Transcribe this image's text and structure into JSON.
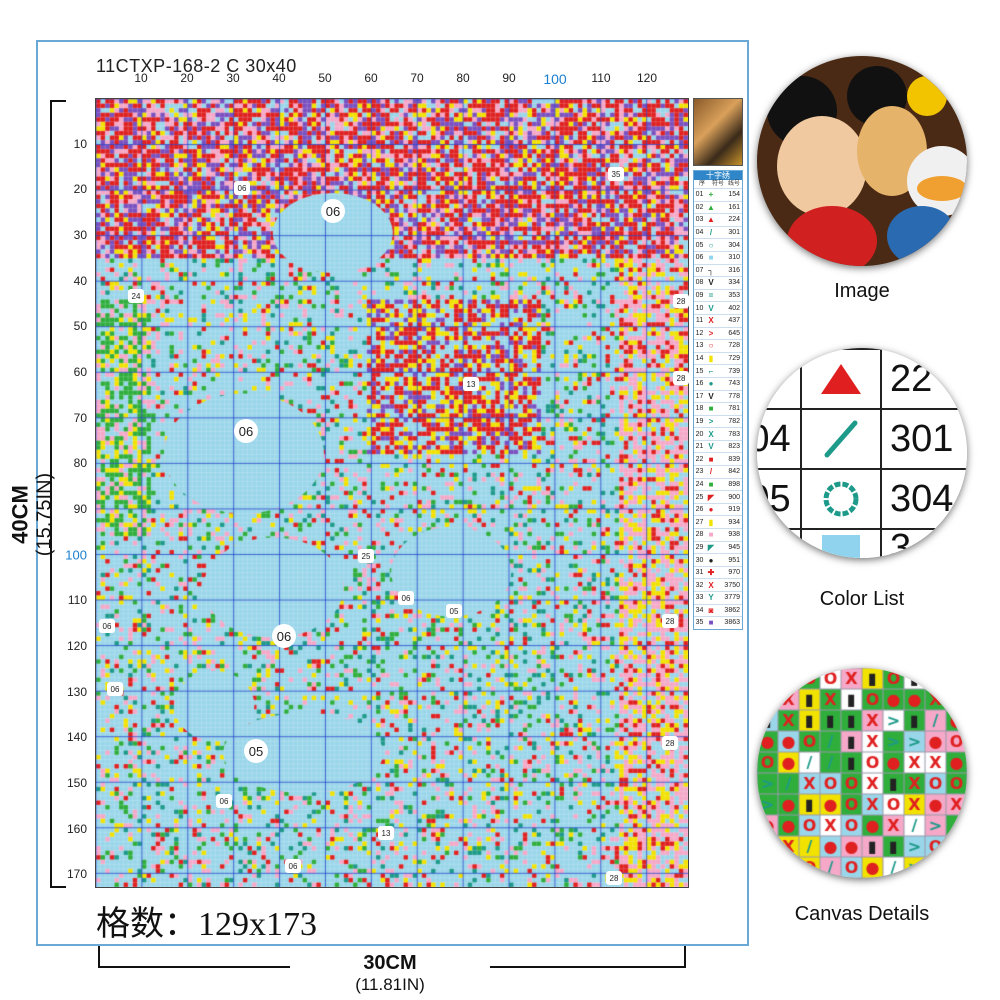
{
  "pattern": {
    "code_title": "11CTXP-168-2 C 30x40",
    "grid_count": "格数：129x173",
    "width_cm": "30CM",
    "width_in": "(11.81IN)",
    "height_cm": "40CM",
    "height_in": "(15.75IN)",
    "top_ticks": [
      "10",
      "20",
      "30",
      "40",
      "50",
      "60",
      "70",
      "80",
      "90",
      "100",
      "110",
      "120"
    ],
    "left_ticks": [
      "10",
      "20",
      "30",
      "40",
      "50",
      "60",
      "70",
      "80",
      "90",
      "100",
      "110",
      "120",
      "130",
      "140",
      "150",
      "160",
      "170"
    ],
    "region_labels": {
      "r1": "06",
      "r2": "06",
      "r3": "06",
      "r4": "05",
      "r5": "06"
    },
    "small_labels": {
      "s1": "06",
      "s2": "28",
      "s3": "28",
      "s4": "13",
      "s5": "06",
      "s6": "25",
      "s7": "05",
      "s8": "06",
      "s9": "28",
      "s10": "06",
      "s11": "28",
      "s12": "13",
      "s13": "06",
      "s14": "28",
      "s15": "24",
      "s16": "35"
    }
  },
  "legend": {
    "header": "十字绣",
    "col_index": "序",
    "col_symbol": "符号",
    "col_code": "线号",
    "rows": [
      {
        "index": "01",
        "symbol": "+",
        "code": "154",
        "color": "#2fae3c"
      },
      {
        "index": "02",
        "symbol": "▲",
        "code": "161",
        "color": "#2fae3c"
      },
      {
        "index": "03",
        "symbol": "▲",
        "code": "224",
        "color": "#e02020"
      },
      {
        "index": "04",
        "symbol": "/",
        "code": "301",
        "color": "#1d9a8a"
      },
      {
        "index": "05",
        "symbol": "○",
        "code": "304",
        "color": "#1d9a8a"
      },
      {
        "index": "06",
        "symbol": "■",
        "code": "310",
        "color": "#8fd3ee"
      },
      {
        "index": "07",
        "symbol": "┐",
        "code": "316",
        "color": "#222222"
      },
      {
        "index": "08",
        "symbol": "V",
        "code": "334",
        "color": "#222222"
      },
      {
        "index": "09",
        "symbol": "=",
        "code": "353",
        "color": "#1d9a8a"
      },
      {
        "index": "10",
        "symbol": "V",
        "code": "402",
        "color": "#1d9a8a"
      },
      {
        "index": "11",
        "symbol": "X",
        "code": "437",
        "color": "#e02020"
      },
      {
        "index": "12",
        "symbol": ">",
        "code": "645",
        "color": "#e02020"
      },
      {
        "index": "13",
        "symbol": "○",
        "code": "728",
        "color": "#e02020"
      },
      {
        "index": "14",
        "symbol": "▮",
        "code": "729",
        "color": "#f2e200"
      },
      {
        "index": "15",
        "symbol": "⌐",
        "code": "739",
        "color": "#1d9a8a"
      },
      {
        "index": "16",
        "symbol": "●",
        "code": "743",
        "color": "#1d9a8a"
      },
      {
        "index": "17",
        "symbol": "V",
        "code": "778",
        "color": "#222222"
      },
      {
        "index": "18",
        "symbol": "■",
        "code": "781",
        "color": "#2fae3c"
      },
      {
        "index": "19",
        "symbol": ">",
        "code": "782",
        "color": "#1d9a8a"
      },
      {
        "index": "20",
        "symbol": "X",
        "code": "783",
        "color": "#1d9a8a"
      },
      {
        "index": "21",
        "symbol": "V",
        "code": "823",
        "color": "#1d9a8a"
      },
      {
        "index": "22",
        "symbol": "■",
        "code": "839",
        "color": "#e02020"
      },
      {
        "index": "23",
        "symbol": "/",
        "code": "842",
        "color": "#e02020"
      },
      {
        "index": "24",
        "symbol": "■",
        "code": "898",
        "color": "#2fae3c"
      },
      {
        "index": "25",
        "symbol": "◤",
        "code": "900",
        "color": "#e02020"
      },
      {
        "index": "26",
        "symbol": "●",
        "code": "919",
        "color": "#e02020"
      },
      {
        "index": "27",
        "symbol": "▮",
        "code": "934",
        "color": "#f2e200"
      },
      {
        "index": "28",
        "symbol": "■",
        "code": "938",
        "color": "#f5a8c8"
      },
      {
        "index": "29",
        "symbol": "◤",
        "code": "945",
        "color": "#1d9a8a"
      },
      {
        "index": "30",
        "symbol": "●",
        "code": "951",
        "color": "#222222"
      },
      {
        "index": "31",
        "symbol": "✚",
        "code": "970",
        "color": "#e02020"
      },
      {
        "index": "32",
        "symbol": "X",
        "code": "3750",
        "color": "#e02020"
      },
      {
        "index": "33",
        "symbol": "Y",
        "code": "3779",
        "color": "#1d9a8a"
      },
      {
        "index": "34",
        "symbol": "◙",
        "code": "3862",
        "color": "#e02020"
      },
      {
        "index": "35",
        "symbol": "■",
        "code": "3863",
        "color": "#7a50c0"
      }
    ]
  },
  "previews": {
    "image_caption": "Image",
    "color_list_caption": "Color List",
    "canvas_details_caption": "Canvas Details",
    "color_list_cells": {
      "c1": "3",
      "c2": "22",
      "c3": "04",
      "c4": "301",
      "c5": "05",
      "c6": "304",
      "c7": "3"
    }
  },
  "colors": {
    "frame_border": "#6aa9d6",
    "sky_blue": "#9ad6ea",
    "red": "#e02020",
    "pink": "#f5a8c8",
    "yellow": "#f2e200",
    "purple": "#7a50c0",
    "green": "#2fae3c",
    "accent_blue": "#1a7fd0"
  }
}
